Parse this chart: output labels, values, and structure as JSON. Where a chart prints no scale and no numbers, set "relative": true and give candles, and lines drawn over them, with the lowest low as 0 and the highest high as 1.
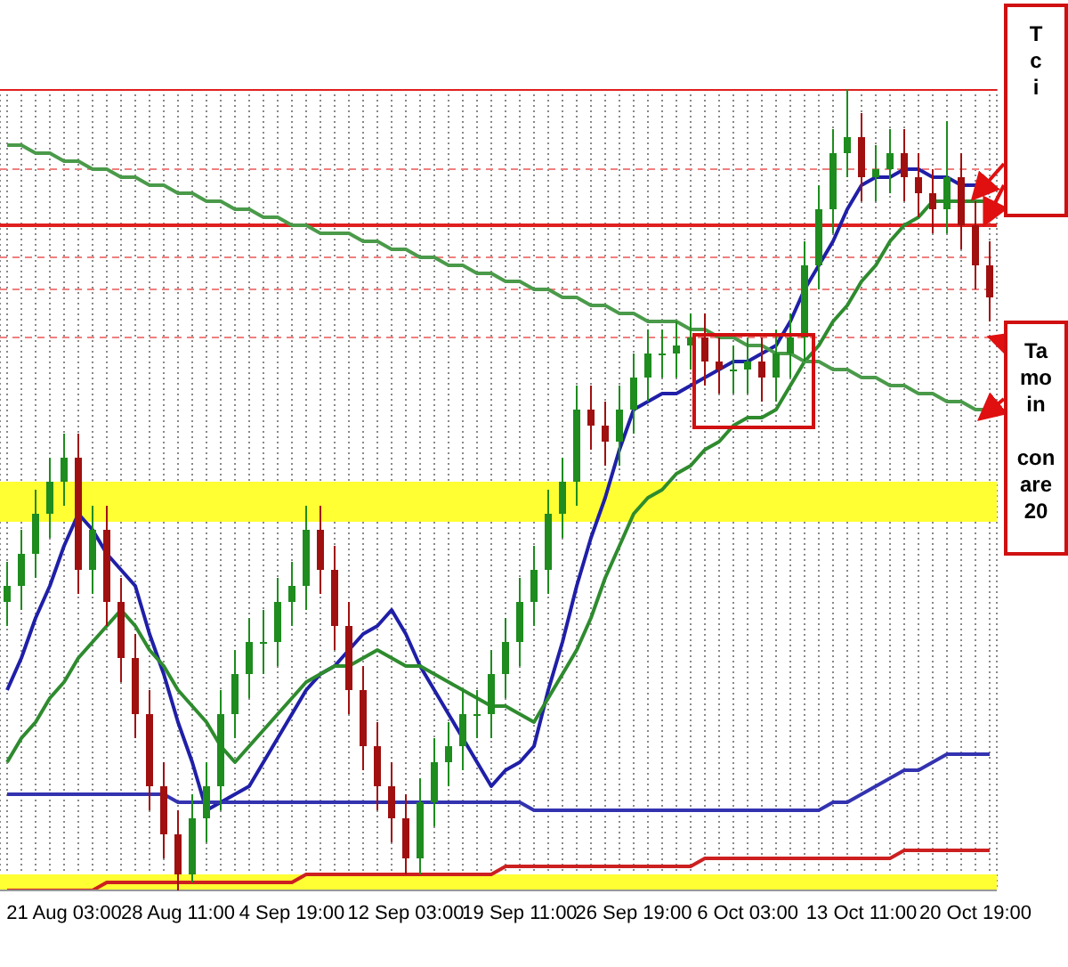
{
  "chart_data": {
    "type": "candlestick",
    "relative": true,
    "grid": "x",
    "categories": [
      null,
      null,
      null,
      null,
      "21 Aug 03:00",
      null,
      null,
      null,
      null,
      null,
      null,
      null,
      "28 Aug 11:00",
      null,
      null,
      null,
      null,
      null,
      null,
      null,
      "4 Sep 19:00",
      null,
      null,
      null,
      null,
      null,
      null,
      null,
      "12 Sep 03:00",
      null,
      null,
      null,
      null,
      null,
      null,
      null,
      "19 Sep 11:00",
      null,
      null,
      null,
      null,
      null,
      null,
      null,
      "26 Sep 19:00",
      null,
      null,
      null,
      null,
      null,
      null,
      null,
      "6 Oct 03:00",
      null,
      null,
      null,
      null,
      null,
      null,
      null,
      "13 Oct 11:00",
      null,
      null,
      null,
      null,
      null,
      null,
      null,
      "20 Oct 19:00",
      null
    ],
    "ohlc": [
      [
        0.36,
        0.41,
        0.33,
        0.38
      ],
      [
        0.38,
        0.45,
        0.35,
        0.42
      ],
      [
        0.42,
        0.5,
        0.39,
        0.47
      ],
      [
        0.47,
        0.54,
        0.44,
        0.51
      ],
      [
        0.51,
        0.57,
        0.48,
        0.54
      ],
      [
        0.54,
        0.57,
        0.37,
        0.4
      ],
      [
        0.4,
        0.48,
        0.37,
        0.45
      ],
      [
        0.45,
        0.48,
        0.33,
        0.36
      ],
      [
        0.36,
        0.39,
        0.26,
        0.29
      ],
      [
        0.29,
        0.32,
        0.19,
        0.22
      ],
      [
        0.22,
        0.25,
        0.1,
        0.13
      ],
      [
        0.13,
        0.16,
        0.04,
        0.07
      ],
      [
        0.07,
        0.1,
        0,
        0.02
      ],
      [
        0.02,
        0.12,
        0.01,
        0.09
      ],
      [
        0.09,
        0.16,
        0.06,
        0.13
      ],
      [
        0.13,
        0.25,
        0.1,
        0.22
      ],
      [
        0.22,
        0.3,
        0.19,
        0.27
      ],
      [
        0.27,
        0.34,
        0.24,
        0.31
      ],
      [
        0.31,
        0.35,
        0.27,
        0.31
      ],
      [
        0.31,
        0.39,
        0.28,
        0.36
      ],
      [
        0.36,
        0.41,
        0.33,
        0.38
      ],
      [
        0.38,
        0.48,
        0.35,
        0.45
      ],
      [
        0.45,
        0.48,
        0.37,
        0.4
      ],
      [
        0.4,
        0.43,
        0.3,
        0.33
      ],
      [
        0.33,
        0.36,
        0.22,
        0.25
      ],
      [
        0.25,
        0.28,
        0.15,
        0.18
      ],
      [
        0.18,
        0.21,
        0.1,
        0.13
      ],
      [
        0.13,
        0.16,
        0.06,
        0.09
      ],
      [
        0.09,
        0.12,
        0.02,
        0.04
      ],
      [
        0.04,
        0.14,
        0.02,
        0.11
      ],
      [
        0.11,
        0.19,
        0.08,
        0.16
      ],
      [
        0.16,
        0.21,
        0.13,
        0.18
      ],
      [
        0.18,
        0.25,
        0.15,
        0.22
      ],
      [
        0.22,
        0.25,
        0.19,
        0.22
      ],
      [
        0.22,
        0.3,
        0.19,
        0.27
      ],
      [
        0.27,
        0.34,
        0.24,
        0.31
      ],
      [
        0.31,
        0.39,
        0.28,
        0.36
      ],
      [
        0.36,
        0.43,
        0.33,
        0.4
      ],
      [
        0.4,
        0.5,
        0.37,
        0.47
      ],
      [
        0.47,
        0.54,
        0.44,
        0.51
      ],
      [
        0.51,
        0.63,
        0.48,
        0.6
      ],
      [
        0.6,
        0.63,
        0.55,
        0.58
      ],
      [
        0.58,
        0.61,
        0.53,
        0.56
      ],
      [
        0.56,
        0.63,
        0.53,
        0.6
      ],
      [
        0.6,
        0.67,
        0.57,
        0.64
      ],
      [
        0.64,
        0.7,
        0.61,
        0.67
      ],
      [
        0.67,
        0.7,
        0.64,
        0.67
      ],
      [
        0.67,
        0.71,
        0.64,
        0.68
      ],
      [
        0.68,
        0.72,
        0.65,
        0.69
      ],
      [
        0.69,
        0.72,
        0.63,
        0.66
      ],
      [
        0.66,
        0.69,
        0.62,
        0.65
      ],
      [
        0.65,
        0.68,
        0.62,
        0.65
      ],
      [
        0.65,
        0.69,
        0.62,
        0.66
      ],
      [
        0.66,
        0.69,
        0.61,
        0.64
      ],
      [
        0.64,
        0.7,
        0.61,
        0.67
      ],
      [
        0.67,
        0.72,
        0.64,
        0.69
      ],
      [
        0.69,
        0.81,
        0.66,
        0.78
      ],
      [
        0.78,
        0.88,
        0.75,
        0.85
      ],
      [
        0.85,
        0.95,
        0.82,
        0.92
      ],
      [
        0.92,
        1,
        0.89,
        0.94
      ],
      [
        0.94,
        0.97,
        0.86,
        0.89
      ],
      [
        0.89,
        0.93,
        0.86,
        0.9
      ],
      [
        0.9,
        0.95,
        0.87,
        0.92
      ],
      [
        0.92,
        0.95,
        0.86,
        0.89
      ],
      [
        0.89,
        0.92,
        0.84,
        0.87
      ],
      [
        0.87,
        0.9,
        0.82,
        0.85
      ],
      [
        0.85,
        0.96,
        0.82,
        0.89
      ],
      [
        0.89,
        0.92,
        0.8,
        0.83
      ],
      [
        0.83,
        0.86,
        0.75,
        0.78
      ],
      [
        0.78,
        0.81,
        0.71,
        0.74
      ]
    ],
    "series": [
      {
        "type": "line",
        "color": "#1f1fa8",
        "values": [
          0.25,
          0.29,
          0.34,
          0.38,
          0.43,
          0.47,
          0.45,
          0.42,
          0.4,
          0.38,
          0.32,
          0.27,
          0.21,
          0.16,
          0.1,
          0.11,
          0.12,
          0.13,
          0.16,
          0.19,
          0.22,
          0.25,
          0.27,
          0.28,
          0.3,
          0.32,
          0.33,
          0.35,
          0.32,
          0.28,
          0.25,
          0.22,
          0.19,
          0.16,
          0.13,
          0.15,
          0.16,
          0.18,
          0.25,
          0.31,
          0.38,
          0.44,
          0.49,
          0.55,
          0.6,
          0.61,
          0.62,
          0.62,
          0.63,
          0.64,
          0.65,
          0.66,
          0.66,
          0.67,
          0.68,
          0.71,
          0.75,
          0.78,
          0.81,
          0.85,
          0.88,
          0.89,
          0.89,
          0.9,
          0.9,
          0.89,
          0.89,
          0.88,
          0.88,
          0.87
        ]
      },
      {
        "type": "line",
        "color": "#2e8b2e",
        "values": [
          0.16,
          0.19,
          0.21,
          0.24,
          0.26,
          0.29,
          0.31,
          0.33,
          0.35,
          0.33,
          0.3,
          0.28,
          0.25,
          0.23,
          0.21,
          0.18,
          0.16,
          0.18,
          0.2,
          0.22,
          0.24,
          0.26,
          0.27,
          0.28,
          0.28,
          0.29,
          0.3,
          0.29,
          0.28,
          0.28,
          0.27,
          0.26,
          0.25,
          0.24,
          0.23,
          0.23,
          0.22,
          0.21,
          0.24,
          0.27,
          0.3,
          0.34,
          0.39,
          0.43,
          0.47,
          0.49,
          0.5,
          0.52,
          0.53,
          0.55,
          0.56,
          0.58,
          0.59,
          0.59,
          0.6,
          0.63,
          0.66,
          0.68,
          0.71,
          0.73,
          0.76,
          0.78,
          0.81,
          0.83,
          0.84,
          0.86,
          0.86,
          0.86,
          0.86,
          0.86
        ]
      },
      {
        "type": "line",
        "color": "#4a9a4a",
        "values": [
          0.93,
          0.93,
          0.92,
          0.92,
          0.91,
          0.91,
          0.9,
          0.9,
          0.89,
          0.89,
          0.88,
          0.88,
          0.87,
          0.87,
          0.86,
          0.86,
          0.85,
          0.85,
          0.84,
          0.84,
          0.83,
          0.83,
          0.82,
          0.82,
          0.82,
          0.81,
          0.81,
          0.8,
          0.8,
          0.79,
          0.79,
          0.78,
          0.78,
          0.77,
          0.77,
          0.76,
          0.76,
          0.75,
          0.75,
          0.74,
          0.74,
          0.73,
          0.73,
          0.72,
          0.72,
          0.71,
          0.71,
          0.71,
          0.7,
          0.7,
          0.69,
          0.69,
          0.68,
          0.68,
          0.67,
          0.67,
          0.66,
          0.66,
          0.65,
          0.65,
          0.64,
          0.64,
          0.63,
          0.63,
          0.62,
          0.62,
          0.61,
          0.61,
          0.6,
          0.6
        ]
      },
      {
        "type": "line",
        "color": "#3333b0",
        "values": [
          0.12,
          0.12,
          0.12,
          0.12,
          0.12,
          0.12,
          0.12,
          0.12,
          0.12,
          0.12,
          0.12,
          0.12,
          0.11,
          0.11,
          0.11,
          0.11,
          0.11,
          0.11,
          0.11,
          0.11,
          0.11,
          0.11,
          0.11,
          0.11,
          0.11,
          0.11,
          0.11,
          0.11,
          0.11,
          0.11,
          0.11,
          0.11,
          0.11,
          0.11,
          0.11,
          0.11,
          0.11,
          0.1,
          0.1,
          0.1,
          0.1,
          0.1,
          0.1,
          0.1,
          0.1,
          0.1,
          0.1,
          0.1,
          0.1,
          0.1,
          0.1,
          0.1,
          0.1,
          0.1,
          0.1,
          0.1,
          0.1,
          0.1,
          0.11,
          0.11,
          0.12,
          0.13,
          0.14,
          0.15,
          0.15,
          0.16,
          0.17,
          0.17,
          0.17,
          0.17
        ]
      },
      {
        "type": "line",
        "color": "#cc2020",
        "values": [
          0,
          0,
          0,
          0,
          0,
          0,
          0,
          0.01,
          0.01,
          0.01,
          0.01,
          0.01,
          0.01,
          0.01,
          0.01,
          0.01,
          0.01,
          0.01,
          0.01,
          0.01,
          0.01,
          0.02,
          0.02,
          0.02,
          0.02,
          0.02,
          0.02,
          0.02,
          0.02,
          0.02,
          0.02,
          0.02,
          0.02,
          0.02,
          0.02,
          0.03,
          0.03,
          0.03,
          0.03,
          0.03,
          0.03,
          0.03,
          0.03,
          0.03,
          0.03,
          0.03,
          0.03,
          0.03,
          0.03,
          0.04,
          0.04,
          0.04,
          0.04,
          0.04,
          0.04,
          0.04,
          0.04,
          0.04,
          0.04,
          0.04,
          0.04,
          0.04,
          0.04,
          0.05,
          0.05,
          0.05,
          0.05,
          0.05,
          0.05,
          0.05
        ]
      }
    ],
    "ref_lines": [
      {
        "axis": "y",
        "value": 1,
        "color": "#e02020",
        "line_style": "solid"
      },
      {
        "axis": "y",
        "value": 0.9,
        "color": "#f08080",
        "line_style": "dashed"
      },
      {
        "axis": "y",
        "value": 0.83,
        "color": "#e02020",
        "line_style": "solid"
      },
      {
        "axis": "y",
        "value": 0.79,
        "color": "#f08080",
        "line_style": "dashed"
      },
      {
        "axis": "y",
        "value": 0.75,
        "color": "#f08080",
        "line_style": "dashed"
      },
      {
        "axis": "y",
        "value": 0.69,
        "color": "#f08080",
        "line_style": "dashed"
      }
    ],
    "bands": [
      {
        "axis": "y",
        "from": 0.46,
        "to": 0.51,
        "color": "#ffff33"
      },
      {
        "axis": "y",
        "from": 0,
        "to": 0.02,
        "color": "#ffff33"
      }
    ],
    "annotations": [
      "T\nc\ni",
      "Ta\nmo\nin\n\ncon\nare\n20"
    ]
  }
}
